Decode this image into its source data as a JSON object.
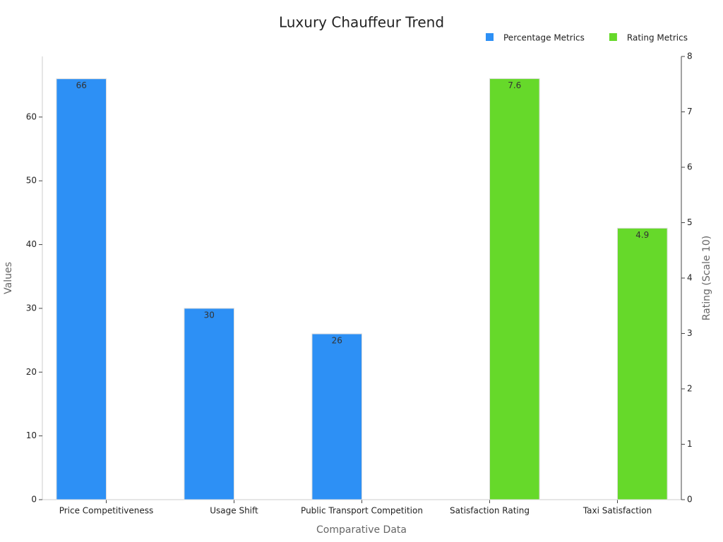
{
  "chart_data": {
    "type": "bar",
    "title": "Luxury Chauffeur Trend",
    "x_label": "Comparative Data",
    "y_label": "Values",
    "y2_label": "Rating (Scale 10)",
    "categories": [
      "Price Competitiveness",
      "Usage Shift",
      "Public Transport Competition",
      "Satisfaction Rating",
      "Taxi Satisfaction"
    ],
    "series": [
      {
        "name": "Percentage Metrics",
        "color": "#2d90f5",
        "values": [
          66,
          30,
          26,
          null,
          null
        ]
      },
      {
        "name": "Rating Metrics",
        "color": "#66d92a",
        "axis": "y2",
        "values": [
          null,
          null,
          null,
          7.6,
          4.9
        ]
      }
    ],
    "ylim": [
      0,
      69.5
    ],
    "yticks": [
      0,
      10,
      20,
      30,
      40,
      50,
      60
    ],
    "y2lim": [
      0,
      8
    ],
    "y2ticks": [
      0,
      1,
      2,
      3,
      4,
      5,
      6,
      7,
      8
    ],
    "grid": false,
    "legend": "top-right"
  }
}
